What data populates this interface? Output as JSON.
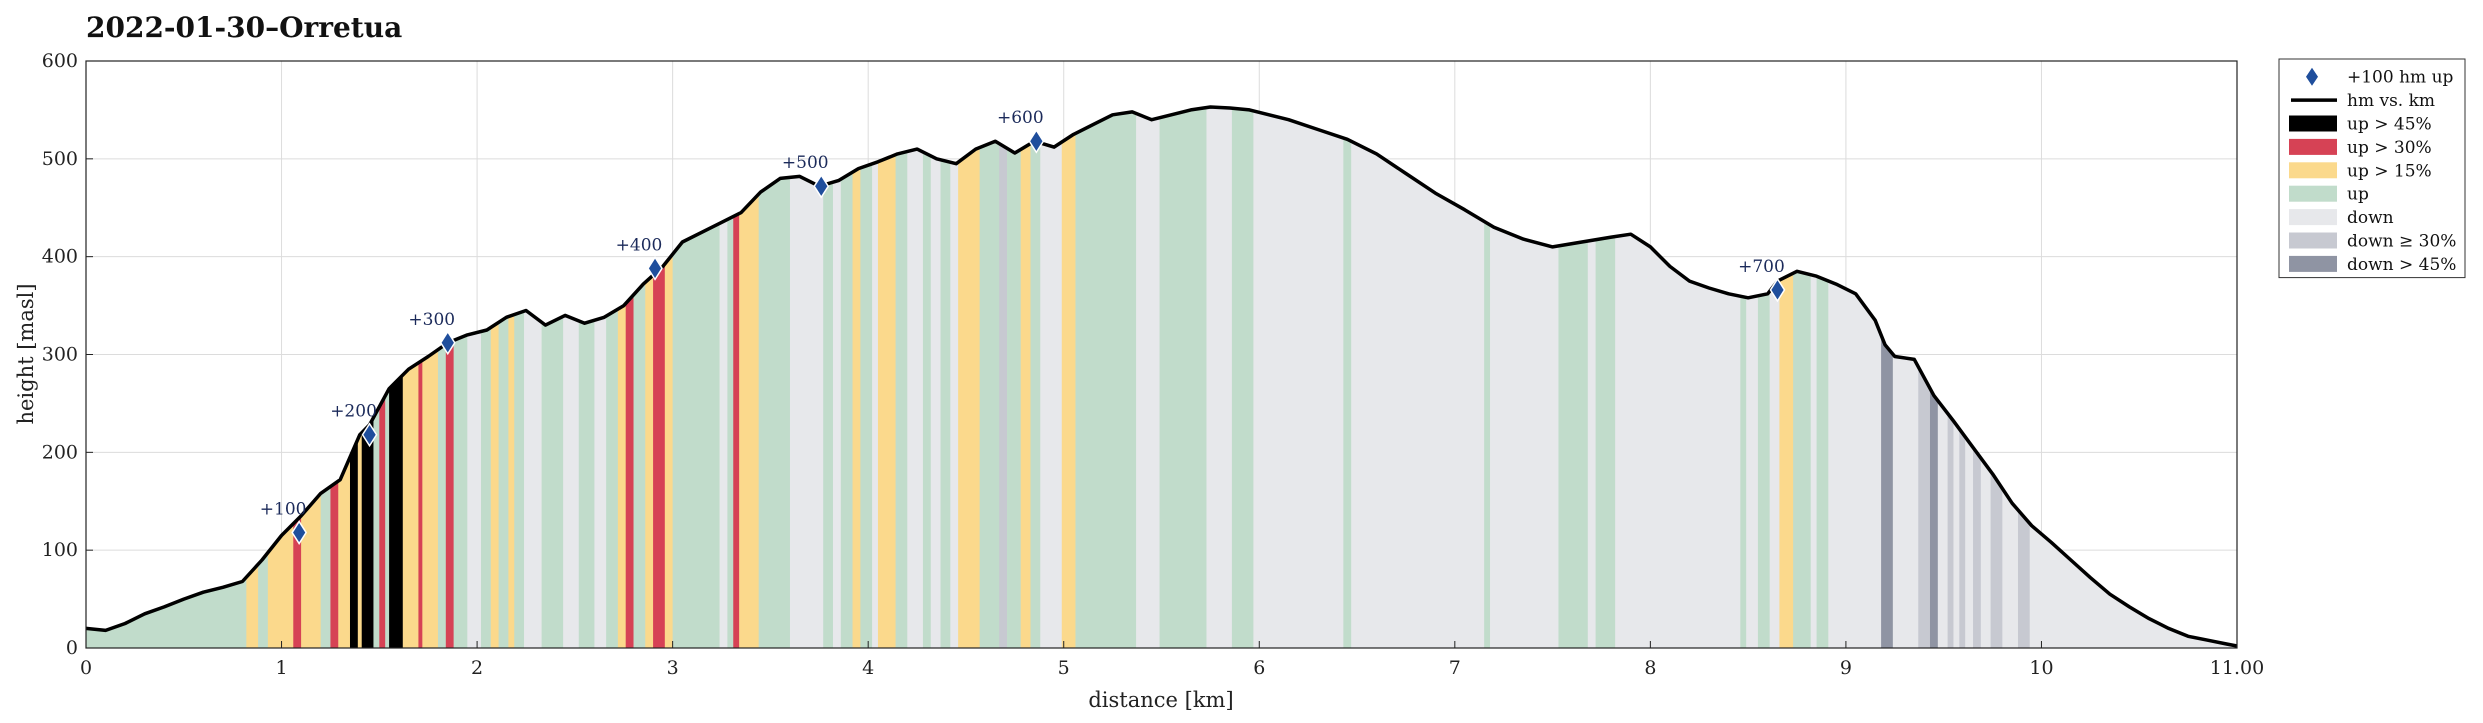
{
  "chart_data": {
    "type": "area",
    "title": "2022-01-30–Orretua",
    "xlabel": "distance [km]",
    "ylabel": "height [masl]",
    "xlim": [
      0,
      11
    ],
    "ylim": [
      0,
      600
    ],
    "xticks": [
      "0",
      "1",
      "2",
      "3",
      "4",
      "5",
      "6",
      "7",
      "8",
      "9",
      "10",
      "11.00"
    ],
    "yticks": [
      "0",
      "100",
      "200",
      "300",
      "400",
      "500",
      "600"
    ],
    "grid": true,
    "legend_position": "outside-top-right",
    "profile": {
      "x": [
        0,
        0.1,
        0.2,
        0.3,
        0.4,
        0.5,
        0.6,
        0.7,
        0.8,
        0.9,
        1.0,
        1.1,
        1.2,
        1.3,
        1.4,
        1.45,
        1.55,
        1.65,
        1.75,
        1.85,
        1.95,
        2.05,
        2.15,
        2.25,
        2.35,
        2.45,
        2.55,
        2.65,
        2.75,
        2.85,
        2.95,
        3.05,
        3.15,
        3.25,
        3.35,
        3.45,
        3.55,
        3.65,
        3.75,
        3.85,
        3.95,
        4.05,
        4.15,
        4.25,
        4.35,
        4.45,
        4.55,
        4.65,
        4.75,
        4.85,
        4.95,
        5.05,
        5.15,
        5.25,
        5.35,
        5.45,
        5.55,
        5.65,
        5.75,
        5.85,
        5.95,
        6.05,
        6.15,
        6.3,
        6.45,
        6.6,
        6.75,
        6.9,
        7.05,
        7.2,
        7.35,
        7.5,
        7.65,
        7.8,
        7.9,
        8.0,
        8.1,
        8.2,
        8.3,
        8.4,
        8.5,
        8.6,
        8.65,
        8.75,
        8.85,
        8.95,
        9.05,
        9.15,
        9.2,
        9.25,
        9.35,
        9.45,
        9.55,
        9.65,
        9.75,
        9.85,
        9.95,
        10.05,
        10.15,
        10.25,
        10.35,
        10.45,
        10.55,
        10.65,
        10.75,
        10.85,
        10.95,
        11.0
      ],
      "y": [
        20,
        18,
        25,
        35,
        42,
        50,
        57,
        62,
        68,
        90,
        115,
        135,
        158,
        172,
        218,
        228,
        265,
        285,
        298,
        312,
        320,
        325,
        338,
        345,
        330,
        340,
        332,
        338,
        350,
        372,
        390,
        415,
        425,
        435,
        445,
        466,
        480,
        482,
        472,
        478,
        490,
        497,
        505,
        510,
        500,
        495,
        510,
        518,
        506,
        518,
        512,
        525,
        535,
        545,
        548,
        540,
        545,
        550,
        553,
        552,
        550,
        545,
        540,
        530,
        520,
        505,
        485,
        465,
        448,
        430,
        418,
        410,
        415,
        420,
        423,
        410,
        390,
        375,
        368,
        362,
        358,
        362,
        375,
        385,
        380,
        372,
        362,
        335,
        310,
        298,
        295,
        258,
        232,
        205,
        178,
        148,
        125,
        108,
        90,
        72,
        55,
        42,
        30,
        20,
        12,
        8,
        4,
        2
      ]
    },
    "milestones": [
      {
        "label": "+100",
        "x": 1.09,
        "y": 118
      },
      {
        "label": "+200",
        "x": 1.45,
        "y": 218
      },
      {
        "label": "+300",
        "x": 1.85,
        "y": 312
      },
      {
        "label": "+400",
        "x": 2.91,
        "y": 388
      },
      {
        "label": "+500",
        "x": 3.76,
        "y": 472
      },
      {
        "label": "+600",
        "x": 4.86,
        "y": 518
      },
      {
        "label": "+700",
        "x": 8.65,
        "y": 366
      }
    ],
    "categories": [
      {
        "key": "up45",
        "label": "up > 45%",
        "color": "#000000"
      },
      {
        "key": "up30",
        "label": "up > 30%",
        "color": "#d64255"
      },
      {
        "key": "up15",
        "label": "up > 15%",
        "color": "#fbd98c"
      },
      {
        "key": "up",
        "label": "up",
        "color": "#c1dccb"
      },
      {
        "key": "down",
        "label": "down",
        "color": "#e7e8eb"
      },
      {
        "key": "down30",
        "label": "down ≥ 30%",
        "color": "#c7c9d1"
      },
      {
        "key": "down45",
        "label": "down > 45%",
        "color": "#8f94a3"
      }
    ],
    "segments": [
      {
        "x0": 0.0,
        "x1": 0.82,
        "cat": "up"
      },
      {
        "x0": 0.82,
        "x1": 0.88,
        "cat": "up15"
      },
      {
        "x0": 0.88,
        "x1": 0.93,
        "cat": "up"
      },
      {
        "x0": 0.93,
        "x1": 1.06,
        "cat": "up15"
      },
      {
        "x0": 1.06,
        "x1": 1.1,
        "cat": "up30"
      },
      {
        "x0": 1.1,
        "x1": 1.2,
        "cat": "up15"
      },
      {
        "x0": 1.2,
        "x1": 1.25,
        "cat": "up"
      },
      {
        "x0": 1.25,
        "x1": 1.29,
        "cat": "up30"
      },
      {
        "x0": 1.29,
        "x1": 1.35,
        "cat": "up15"
      },
      {
        "x0": 1.35,
        "x1": 1.39,
        "cat": "up45"
      },
      {
        "x0": 1.39,
        "x1": 1.41,
        "cat": "up15"
      },
      {
        "x0": 1.41,
        "x1": 1.47,
        "cat": "up45"
      },
      {
        "x0": 1.47,
        "x1": 1.5,
        "cat": "up"
      },
      {
        "x0": 1.5,
        "x1": 1.53,
        "cat": "up30"
      },
      {
        "x0": 1.53,
        "x1": 1.55,
        "cat": "up"
      },
      {
        "x0": 1.55,
        "x1": 1.62,
        "cat": "up45"
      },
      {
        "x0": 1.62,
        "x1": 1.7,
        "cat": "up15"
      },
      {
        "x0": 1.7,
        "x1": 1.72,
        "cat": "up30"
      },
      {
        "x0": 1.72,
        "x1": 1.8,
        "cat": "up15"
      },
      {
        "x0": 1.8,
        "x1": 1.84,
        "cat": "up"
      },
      {
        "x0": 1.84,
        "x1": 1.88,
        "cat": "up30"
      },
      {
        "x0": 1.88,
        "x1": 1.95,
        "cat": "up"
      },
      {
        "x0": 1.95,
        "x1": 2.02,
        "cat": "down"
      },
      {
        "x0": 2.02,
        "x1": 2.07,
        "cat": "up"
      },
      {
        "x0": 2.07,
        "x1": 2.11,
        "cat": "up15"
      },
      {
        "x0": 2.11,
        "x1": 2.16,
        "cat": "up"
      },
      {
        "x0": 2.16,
        "x1": 2.19,
        "cat": "up15"
      },
      {
        "x0": 2.19,
        "x1": 2.24,
        "cat": "up"
      },
      {
        "x0": 2.24,
        "x1": 2.33,
        "cat": "down"
      },
      {
        "x0": 2.33,
        "x1": 2.44,
        "cat": "up"
      },
      {
        "x0": 2.44,
        "x1": 2.52,
        "cat": "down"
      },
      {
        "x0": 2.52,
        "x1": 2.6,
        "cat": "up"
      },
      {
        "x0": 2.6,
        "x1": 2.66,
        "cat": "down"
      },
      {
        "x0": 2.66,
        "x1": 2.72,
        "cat": "up"
      },
      {
        "x0": 2.72,
        "x1": 2.76,
        "cat": "up15"
      },
      {
        "x0": 2.76,
        "x1": 2.8,
        "cat": "up30"
      },
      {
        "x0": 2.8,
        "x1": 2.86,
        "cat": "up"
      },
      {
        "x0": 2.86,
        "x1": 2.9,
        "cat": "up15"
      },
      {
        "x0": 2.9,
        "x1": 2.96,
        "cat": "up30"
      },
      {
        "x0": 2.96,
        "x1": 3.0,
        "cat": "up15"
      },
      {
        "x0": 3.0,
        "x1": 3.24,
        "cat": "up"
      },
      {
        "x0": 3.24,
        "x1": 3.28,
        "cat": "down"
      },
      {
        "x0": 3.28,
        "x1": 3.31,
        "cat": "up"
      },
      {
        "x0": 3.31,
        "x1": 3.34,
        "cat": "up30"
      },
      {
        "x0": 3.34,
        "x1": 3.44,
        "cat": "up15"
      },
      {
        "x0": 3.44,
        "x1": 3.6,
        "cat": "up"
      },
      {
        "x0": 3.6,
        "x1": 3.77,
        "cat": "down"
      },
      {
        "x0": 3.77,
        "x1": 3.82,
        "cat": "up"
      },
      {
        "x0": 3.82,
        "x1": 3.86,
        "cat": "down"
      },
      {
        "x0": 3.86,
        "x1": 3.92,
        "cat": "up"
      },
      {
        "x0": 3.92,
        "x1": 3.96,
        "cat": "up15"
      },
      {
        "x0": 3.96,
        "x1": 4.02,
        "cat": "up"
      },
      {
        "x0": 4.02,
        "x1": 4.05,
        "cat": "down"
      },
      {
        "x0": 4.05,
        "x1": 4.14,
        "cat": "up15"
      },
      {
        "x0": 4.14,
        "x1": 4.2,
        "cat": "up"
      },
      {
        "x0": 4.2,
        "x1": 4.28,
        "cat": "down"
      },
      {
        "x0": 4.28,
        "x1": 4.32,
        "cat": "up"
      },
      {
        "x0": 4.32,
        "x1": 4.37,
        "cat": "down"
      },
      {
        "x0": 4.37,
        "x1": 4.42,
        "cat": "up"
      },
      {
        "x0": 4.42,
        "x1": 4.46,
        "cat": "down"
      },
      {
        "x0": 4.46,
        "x1": 4.57,
        "cat": "up15"
      },
      {
        "x0": 4.57,
        "x1": 4.67,
        "cat": "up"
      },
      {
        "x0": 4.67,
        "x1": 4.71,
        "cat": "down30"
      },
      {
        "x0": 4.71,
        "x1": 4.78,
        "cat": "up"
      },
      {
        "x0": 4.78,
        "x1": 4.83,
        "cat": "up15"
      },
      {
        "x0": 4.83,
        "x1": 4.88,
        "cat": "up"
      },
      {
        "x0": 4.88,
        "x1": 4.99,
        "cat": "down"
      },
      {
        "x0": 4.99,
        "x1": 5.06,
        "cat": "up15"
      },
      {
        "x0": 5.06,
        "x1": 5.37,
        "cat": "up"
      },
      {
        "x0": 5.37,
        "x1": 5.49,
        "cat": "down"
      },
      {
        "x0": 5.49,
        "x1": 5.73,
        "cat": "up"
      },
      {
        "x0": 5.73,
        "x1": 5.86,
        "cat": "down"
      },
      {
        "x0": 5.86,
        "x1": 5.97,
        "cat": "up"
      },
      {
        "x0": 5.97,
        "x1": 6.43,
        "cat": "down"
      },
      {
        "x0": 6.43,
        "x1": 6.47,
        "cat": "up"
      },
      {
        "x0": 6.47,
        "x1": 7.15,
        "cat": "down"
      },
      {
        "x0": 7.15,
        "x1": 7.18,
        "cat": "up"
      },
      {
        "x0": 7.18,
        "x1": 7.53,
        "cat": "down"
      },
      {
        "x0": 7.53,
        "x1": 7.68,
        "cat": "up"
      },
      {
        "x0": 7.68,
        "x1": 7.72,
        "cat": "down"
      },
      {
        "x0": 7.72,
        "x1": 7.82,
        "cat": "up"
      },
      {
        "x0": 7.82,
        "x1": 8.46,
        "cat": "down"
      },
      {
        "x0": 8.46,
        "x1": 8.49,
        "cat": "up"
      },
      {
        "x0": 8.49,
        "x1": 8.55,
        "cat": "down"
      },
      {
        "x0": 8.55,
        "x1": 8.61,
        "cat": "up"
      },
      {
        "x0": 8.61,
        "x1": 8.66,
        "cat": "down"
      },
      {
        "x0": 8.66,
        "x1": 8.73,
        "cat": "up15"
      },
      {
        "x0": 8.73,
        "x1": 8.82,
        "cat": "up"
      },
      {
        "x0": 8.82,
        "x1": 8.85,
        "cat": "down"
      },
      {
        "x0": 8.85,
        "x1": 8.91,
        "cat": "up"
      },
      {
        "x0": 8.91,
        "x1": 9.18,
        "cat": "down"
      },
      {
        "x0": 9.18,
        "x1": 9.24,
        "cat": "down45"
      },
      {
        "x0": 9.24,
        "x1": 9.37,
        "cat": "down"
      },
      {
        "x0": 9.37,
        "x1": 9.43,
        "cat": "down30"
      },
      {
        "x0": 9.43,
        "x1": 9.47,
        "cat": "down45"
      },
      {
        "x0": 9.47,
        "x1": 9.52,
        "cat": "down"
      },
      {
        "x0": 9.52,
        "x1": 9.55,
        "cat": "down30"
      },
      {
        "x0": 9.55,
        "x1": 9.58,
        "cat": "down"
      },
      {
        "x0": 9.58,
        "x1": 9.61,
        "cat": "down30"
      },
      {
        "x0": 9.61,
        "x1": 9.65,
        "cat": "down"
      },
      {
        "x0": 9.65,
        "x1": 9.69,
        "cat": "down30"
      },
      {
        "x0": 9.69,
        "x1": 9.74,
        "cat": "down"
      },
      {
        "x0": 9.74,
        "x1": 9.8,
        "cat": "down30"
      },
      {
        "x0": 9.8,
        "x1": 9.88,
        "cat": "down"
      },
      {
        "x0": 9.88,
        "x1": 9.94,
        "cat": "down30"
      },
      {
        "x0": 9.94,
        "x1": 11.0,
        "cat": "down"
      }
    ],
    "legend": [
      {
        "label": "+100 hm up",
        "kind": "marker",
        "color": "#1f4e9c"
      },
      {
        "label": "hm vs. km",
        "kind": "line",
        "color": "#000000"
      },
      {
        "label": "up > 45%",
        "kind": "patch",
        "color": "#000000"
      },
      {
        "label": "up > 30%",
        "kind": "patch",
        "color": "#d64255"
      },
      {
        "label": "up > 15%",
        "kind": "patch",
        "color": "#fbd98c"
      },
      {
        "label": "up",
        "kind": "patch",
        "color": "#c1dccb"
      },
      {
        "label": "down",
        "kind": "patch",
        "color": "#e7e8eb"
      },
      {
        "label": "down ≥ 30%",
        "kind": "patch",
        "color": "#c7c9d1"
      },
      {
        "label": "down > 45%",
        "kind": "patch",
        "color": "#8f94a3"
      }
    ]
  }
}
